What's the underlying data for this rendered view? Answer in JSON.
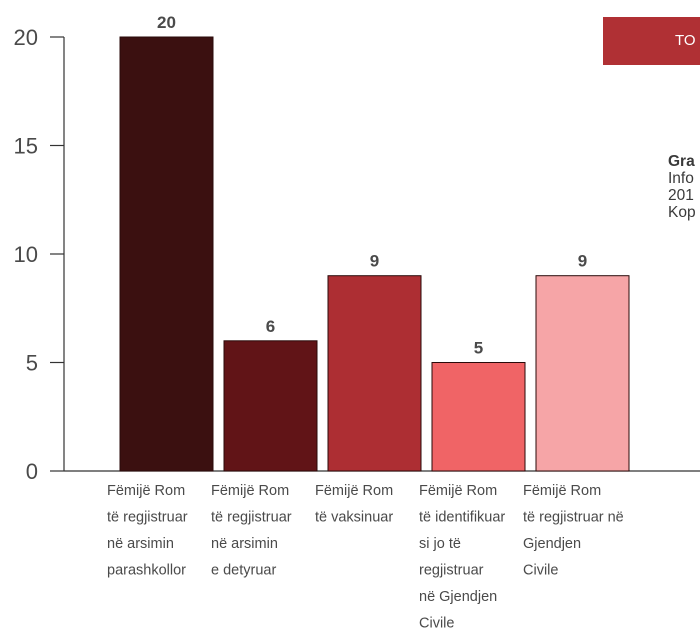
{
  "chart_data": {
    "type": "bar",
    "categories": [
      [
        "Fëmijë Rom",
        "të regjistruar",
        "në arsimin",
        "parashkollor"
      ],
      [
        "Fëmijë Rom",
        "të regjistruar",
        "në arsimin",
        "e detyruar"
      ],
      [
        "Fëmijë Rom",
        "të vaksinuar"
      ],
      [
        "Fëmijë Rom",
        "të identifikuar",
        "si jo të",
        "regjistruar",
        "në Gjendjen",
        "Civile"
      ],
      [
        "Fëmijë Rom",
        "të regjistruar në",
        "Gjendjen",
        "Civile"
      ]
    ],
    "values": [
      20,
      6,
      9,
      5,
      9
    ],
    "colors": [
      "#3b1010",
      "#611417",
      "#ad2e33",
      "#f06466",
      "#f6a5a7"
    ],
    "ylim": [
      0,
      20
    ],
    "yticks": [
      0,
      5,
      10,
      15,
      20
    ],
    "grid": false
  },
  "side": {
    "tag": "TO",
    "title": "Gra",
    "lines": [
      "Info",
      "201",
      "Kop"
    ]
  }
}
